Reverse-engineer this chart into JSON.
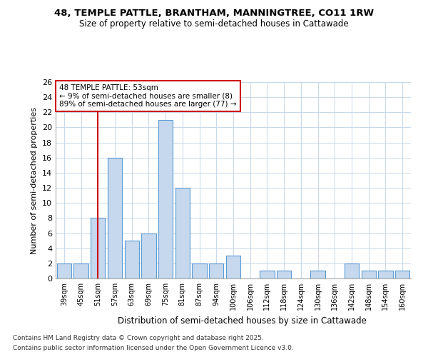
{
  "title_line1": "48, TEMPLE PATTLE, BRANTHAM, MANNINGTREE, CO11 1RW",
  "title_line2": "Size of property relative to semi-detached houses in Cattawade",
  "xlabel": "Distribution of semi-detached houses by size in Cattawade",
  "ylabel": "Number of semi-detached properties",
  "categories": [
    "39sqm",
    "45sqm",
    "51sqm",
    "57sqm",
    "63sqm",
    "69sqm",
    "75sqm",
    "81sqm",
    "87sqm",
    "94sqm",
    "100sqm",
    "106sqm",
    "112sqm",
    "118sqm",
    "124sqm",
    "130sqm",
    "136sqm",
    "142sqm",
    "148sqm",
    "154sqm",
    "160sqm"
  ],
  "values": [
    2,
    2,
    8,
    16,
    5,
    6,
    21,
    12,
    2,
    2,
    3,
    0,
    1,
    1,
    0,
    1,
    0,
    2,
    1,
    1,
    1
  ],
  "bar_color": "#c5d8ed",
  "bar_edge_color": "#5b9bd5",
  "highlight_bar_index": 2,
  "highlight_line_color": "#cc0000",
  "annotation_text": "48 TEMPLE PATTLE: 53sqm\n← 9% of semi-detached houses are smaller (8)\n89% of semi-detached houses are larger (77) →",
  "annotation_box_color": "#ffffff",
  "annotation_box_edge_color": "#cc0000",
  "ylim": [
    0,
    26
  ],
  "yticks": [
    0,
    2,
    4,
    6,
    8,
    10,
    12,
    14,
    16,
    18,
    20,
    22,
    24,
    26
  ],
  "footer_line1": "Contains HM Land Registry data © Crown copyright and database right 2025.",
  "footer_line2": "Contains public sector information licensed under the Open Government Licence v3.0.",
  "background_color": "#ffffff",
  "grid_color": "#c8d8e8"
}
